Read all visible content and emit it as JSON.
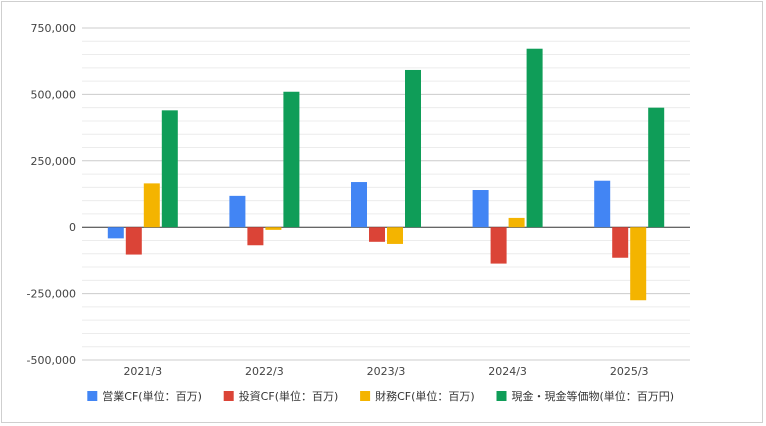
{
  "chart_data": {
    "type": "bar",
    "title": "",
    "xlabel": "",
    "ylabel": "",
    "categories": [
      "2021/3",
      "2022/3",
      "2023/3",
      "2024/3",
      "2025/3"
    ],
    "series": [
      {
        "name": "営業CF(単位：百万)",
        "color": "#4285f4",
        "values": [
          -42000,
          118000,
          170000,
          140000,
          175000
        ]
      },
      {
        "name": "投資CF(単位：百万)",
        "color": "#db4437",
        "values": [
          -103000,
          -68000,
          -55000,
          -137000,
          -115000
        ]
      },
      {
        "name": "財務CF(単位：百万)",
        "color": "#f4b400",
        "values": [
          165000,
          -10000,
          -63000,
          35000,
          -275000
        ]
      },
      {
        "name": "現金・現金等価物(単位：百万円)",
        "color": "#0f9d58",
        "values": [
          440000,
          510000,
          592000,
          672000,
          450000
        ]
      }
    ],
    "ylim": [
      -500000,
      750000
    ],
    "yticks": [
      -500000,
      -250000,
      0,
      250000,
      500000,
      750000
    ],
    "ytick_labels": [
      "-500,000",
      "-250,000",
      "0",
      "250,000",
      "500,000",
      "750,000"
    ],
    "grid": true,
    "legend": "bottom"
  }
}
